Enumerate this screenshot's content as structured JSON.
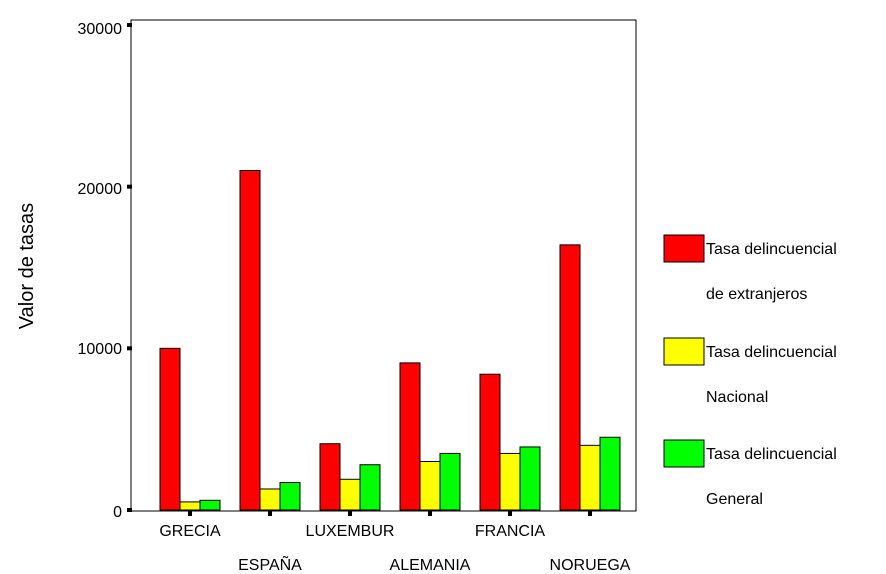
{
  "chart_data": {
    "type": "bar",
    "title": "",
    "xlabel": "",
    "ylabel": "Valor de tasas",
    "ylim": [
      0,
      30000
    ],
    "yticks": [
      "0",
      "10000",
      "20000",
      "30000"
    ],
    "grid": false,
    "legend_position": "right",
    "categories": [
      "GRECIA",
      "ESPAÑA",
      "LUXEMBUR",
      "ALEMANIA",
      "FRANCIA",
      "NORUEGA"
    ],
    "series": [
      {
        "name": [
          "Tasa delincuencial",
          "de extranjeros"
        ],
        "color": "#ff0000",
        "values": [
          10000,
          21000,
          4100,
          9100,
          8400,
          16400
        ]
      },
      {
        "name": [
          "Tasa delincuencial",
          "Nacional"
        ],
        "color": "#ffff00",
        "values": [
          500,
          1300,
          1900,
          3000,
          3500,
          4000
        ]
      },
      {
        "name": [
          "Tasa delincuencial",
          "General"
        ],
        "color": "#00ff00",
        "values": [
          600,
          1700,
          2800,
          3500,
          3900,
          4500
        ]
      }
    ]
  }
}
